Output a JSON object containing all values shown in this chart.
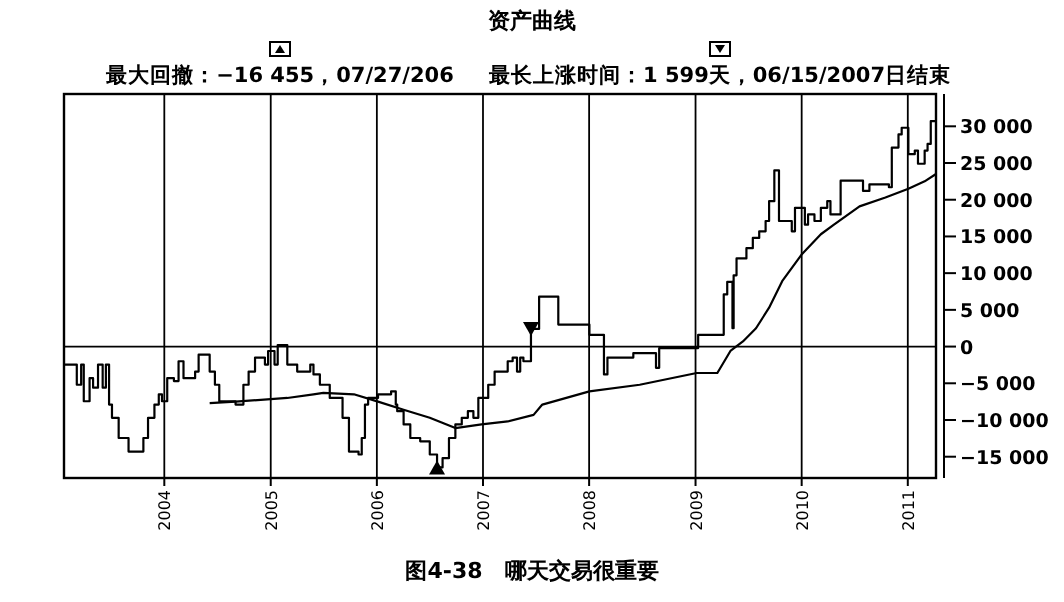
{
  "chart_data": {
    "type": "step",
    "title": "资产曲线",
    "series": [
      {
        "color": "#000000",
        "x": [
          "2003-01-21",
          "2003-03-06",
          "2003-03-21",
          "2003-03-30",
          "2003-04-19",
          "2003-05-01",
          "2003-05-18",
          "2003-06-03",
          "2003-06-14",
          "2003-06-25",
          "2003-07-05",
          "2003-07-28",
          "2003-08-31",
          "2003-10-21",
          "2003-11-06",
          "2003-11-28",
          "2003-12-13",
          "2003-12-24",
          "2004-01-11",
          "2004-02-03",
          "2004-02-19",
          "2004-03-07",
          "2004-04-16",
          "2004-04-28",
          "2004-06-05",
          "2004-06-23",
          "2004-07-08",
          "2004-09-02",
          "2004-09-29",
          "2004-10-17",
          "2004-11-08",
          "2004-12-12",
          "2004-12-23",
          "2005-01-14",
          "2005-01-25",
          "2005-02-27",
          "2005-04-02",
          "2005-05-17",
          "2005-05-28",
          "2005-06-19",
          "2005-07-23",
          "2005-09-05",
          "2005-09-27",
          "2005-10-30",
          "2005-11-10",
          "2005-11-21",
          "2005-12-02",
          "2006-01-05",
          "2006-02-19",
          "2006-03-07",
          "2006-03-12",
          "2006-04-03",
          "2006-04-26",
          "2006-05-30",
          "2006-07-02",
          "2006-07-27",
          "2006-08-15",
          "2006-09-06",
          "2006-09-28",
          "2006-10-20",
          "2006-11-10",
          "2006-11-29",
          "2006-12-16",
          "2007-01-19",
          "2007-02-10",
          "2007-03-27",
          "2007-04-13",
          "2007-04-28",
          "2007-05-09",
          "2007-05-20",
          "2007-06-15",
          "2007-07-13",
          "2007-09-17",
          "2008-01-02",
          "2008-02-21",
          "2008-03-04",
          "2008-06-01",
          "2008-08-18",
          "2008-08-29",
          "2009-01-10",
          "2009-04-08",
          "2009-04-20",
          "2009-05-08",
          "2009-05-12",
          "2009-05-22",
          "2009-06-25",
          "2009-07-17",
          "2009-08-08",
          "2009-08-30",
          "2009-09-11",
          "2009-09-29",
          "2009-10-15",
          "2009-11-28",
          "2009-12-09",
          "2010-01-12",
          "2010-01-23",
          "2010-02-14",
          "2010-03-08",
          "2010-03-30",
          "2010-04-10",
          "2010-05-15",
          "2010-07-31",
          "2010-08-22",
          "2010-10-28",
          "2010-11-07",
          "2010-11-30",
          "2010-12-11",
          "2011-01-03",
          "2011-01-25",
          "2011-02-05",
          "2011-02-28",
          "2011-03-10",
          "2011-03-21",
          "2011-04-08"
        ],
        "values": [
          -2450,
          -5200,
          -2450,
          -7450,
          -4300,
          -5600,
          -2450,
          -5600,
          -2450,
          -7900,
          -9700,
          -12450,
          -14300,
          -12450,
          -9700,
          -7900,
          -6500,
          -7450,
          -4300,
          -4700,
          -2000,
          -4300,
          -3400,
          -1100,
          -3400,
          -5200,
          -7450,
          -7900,
          -5200,
          -3400,
          -1500,
          -2450,
          -600,
          -2450,
          200,
          -2450,
          -3400,
          -2450,
          -3800,
          -5200,
          -7000,
          -9700,
          -14300,
          -14700,
          -12450,
          -7900,
          -7000,
          -6500,
          -6100,
          -7900,
          -8800,
          -10600,
          -12450,
          -12900,
          -14700,
          -16455,
          -15200,
          -12450,
          -10600,
          -9700,
          -8800,
          -9700,
          -7000,
          -5200,
          -3400,
          -2000,
          -1500,
          -3400,
          -1500,
          -2000,
          2400,
          6800,
          3000,
          1600,
          -3800,
          -1500,
          -900,
          -2900,
          -200,
          1600,
          7100,
          8800,
          2500,
          9700,
          12000,
          13400,
          14800,
          15700,
          17100,
          19800,
          24000,
          17100,
          15700,
          18900,
          16600,
          18000,
          17100,
          18900,
          19800,
          18000,
          22600,
          21200,
          22100,
          21700,
          27100,
          28900,
          29800,
          26200,
          26700,
          24900,
          26700,
          27600,
          30700,
          30700
        ]
      },
      {
        "type": "line",
        "color": "#000000",
        "x": [
          "2004-06-05",
          "2004-09-02",
          "2005-02-27",
          "2005-05-28",
          "2005-07-01",
          "2005-10-14",
          "2006-01-05",
          "2006-04-03",
          "2006-07-02",
          "2006-09-28",
          "2006-12-27",
          "2007-03-27",
          "2007-06-24",
          "2007-07-24",
          "2008-01-02",
          "2008-06-23",
          "2009-01-05",
          "2009-03-17",
          "2009-05-01",
          "2009-06-13",
          "2009-07-28",
          "2009-09-11",
          "2009-10-26",
          "2009-12-31",
          "2010-03-08",
          "2010-04-22",
          "2010-07-19",
          "2010-10-16",
          "2011-01-03",
          "2011-02-28",
          "2011-04-08"
        ],
        "values": [
          -7700,
          -7500,
          -7000,
          -6500,
          -6300,
          -6500,
          -7500,
          -8600,
          -9700,
          -11100,
          -10600,
          -10200,
          -9300,
          -7900,
          -6100,
          -5200,
          -3600,
          -3600,
          -600,
          700,
          2500,
          5300,
          8900,
          12500,
          15300,
          16600,
          19100,
          20300,
          21500,
          22500,
          23500
        ]
      },
      {
        "type": "scatter",
        "color": "#000000",
        "marker": "triangle",
        "x": [
          "2006-07-27",
          "2007-06-15"
        ],
        "values": [
          -16455,
          2400
        ]
      }
    ],
    "xlim": [
      "2003-01-21",
      "2011-04-08"
    ],
    "xticks": [
      "2004",
      "2005",
      "2006",
      "2007",
      "2008",
      "2009",
      "2010",
      "2011"
    ],
    "ylim": [
      -17900,
      34400
    ],
    "yticks": [
      {
        "value": 30000,
        "label": "30 000"
      },
      {
        "value": 25000,
        "label": "25 000"
      },
      {
        "value": 20000,
        "label": "20 000"
      },
      {
        "value": 15000,
        "label": "15 000"
      },
      {
        "value": 10000,
        "label": "10 000"
      },
      {
        "value": 5000,
        "label": "5 000"
      },
      0,
      {
        "value": -5000,
        "label": "−5 000"
      },
      {
        "value": -10000,
        "label": "−10 000"
      },
      {
        "value": -15000,
        "label": "−15 000"
      }
    ],
    "grid": "x",
    "ref_lines": [
      {
        "axis": "y",
        "value": 0,
        "color": "#000000"
      }
    ],
    "annotations": [
      "最大回撤：−16 455，07/27/206",
      "最长上涨时间：1 599天，06/15/2007日结束",
      "图4-38　哪天交易很重要"
    ]
  }
}
